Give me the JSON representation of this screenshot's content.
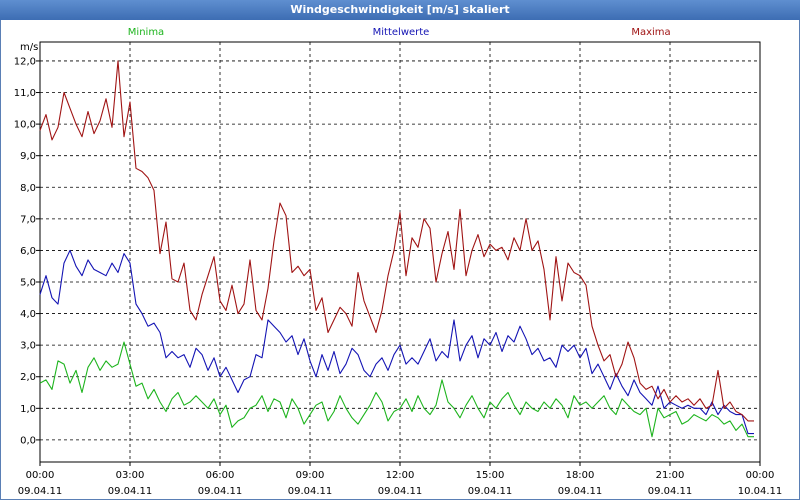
{
  "title": "Windgeschwindigkeit [m/s] skaliert",
  "colors": {
    "min": "#1eb41e",
    "mean": "#1414b4",
    "max": "#a01414",
    "title_bg": "#4a7cc0"
  },
  "chart_data": {
    "type": "line",
    "title": "Windgeschwindigkeit [m/s] skaliert",
    "ylabel": "m/s",
    "ylim": [
      -0.7,
      12.6
    ],
    "xlim_hours": [
      0,
      24
    ],
    "y_ticks": [
      "0,0",
      "1,0",
      "2,0",
      "3,0",
      "4,0",
      "5,0",
      "6,0",
      "7,0",
      "8,0",
      "9,0",
      "10,0",
      "11,0",
      "12,0"
    ],
    "x_ticks": [
      {
        "time": "00:00",
        "date": "09.04.11"
      },
      {
        "time": "03:00",
        "date": "09.04.11"
      },
      {
        "time": "06:00",
        "date": "09.04.11"
      },
      {
        "time": "09:00",
        "date": "09.04.11"
      },
      {
        "time": "12:00",
        "date": "09.04.11"
      },
      {
        "time": "15:00",
        "date": "09.04.11"
      },
      {
        "time": "18:00",
        "date": "09.04.11"
      },
      {
        "time": "21:00",
        "date": "09.04.11"
      },
      {
        "time": "00:00",
        "date": "10.04.11"
      }
    ],
    "legend": [
      "Minima",
      "Mittelwerte",
      "Maxima"
    ],
    "series": [
      {
        "name": "Minima",
        "color": "#1eb41e",
        "x": [
          0,
          0.2,
          0.4,
          0.6,
          0.8,
          1,
          1.2,
          1.4,
          1.6,
          1.8,
          2,
          2.2,
          2.4,
          2.6,
          2.8,
          3,
          3.2,
          3.4,
          3.6,
          3.8,
          4,
          4.2,
          4.4,
          4.6,
          4.8,
          5,
          5.2,
          5.4,
          5.6,
          5.8,
          6,
          6.2,
          6.4,
          6.6,
          6.8,
          7,
          7.2,
          7.4,
          7.6,
          7.8,
          8,
          8.2,
          8.4,
          8.6,
          8.8,
          9,
          9.2,
          9.4,
          9.6,
          9.8,
          10,
          10.2,
          10.4,
          10.6,
          10.8,
          11,
          11.2,
          11.4,
          11.6,
          11.8,
          12,
          12.2,
          12.4,
          12.6,
          12.8,
          13,
          13.2,
          13.4,
          13.6,
          13.8,
          14,
          14.2,
          14.4,
          14.6,
          14.8,
          15,
          15.2,
          15.4,
          15.6,
          15.8,
          16,
          16.2,
          16.4,
          16.6,
          16.8,
          17,
          17.2,
          17.4,
          17.6,
          17.8,
          18,
          18.2,
          18.4,
          18.6,
          18.8,
          19,
          19.2,
          19.4,
          19.6,
          19.8,
          20,
          20.2,
          20.4,
          20.6,
          20.8,
          21,
          21.2,
          21.4,
          21.6,
          21.8,
          22,
          22.2,
          22.4,
          22.6,
          22.8,
          23,
          23.2,
          23.4,
          23.6,
          23.8
        ],
        "values": [
          1.8,
          1.9,
          1.6,
          2.5,
          2.4,
          1.8,
          2.2,
          1.5,
          2.3,
          2.6,
          2.2,
          2.5,
          2.3,
          2.4,
          3.1,
          2.4,
          1.7,
          1.8,
          1.3,
          1.6,
          1.2,
          0.9,
          1.3,
          1.5,
          1.1,
          1.2,
          1.4,
          1.2,
          1.0,
          1.3,
          0.8,
          1.1,
          0.4,
          0.6,
          0.7,
          1.0,
          1.1,
          1.4,
          0.9,
          1.3,
          1.2,
          0.7,
          1.3,
          1.0,
          0.5,
          0.8,
          1.1,
          1.2,
          0.6,
          0.9,
          1.4,
          1.0,
          0.7,
          0.5,
          0.8,
          1.1,
          1.5,
          1.2,
          0.6,
          0.9,
          1.0,
          1.3,
          0.9,
          1.4,
          1.0,
          0.8,
          1.1,
          1.9,
          1.2,
          1.0,
          0.7,
          1.1,
          1.4,
          1.0,
          0.7,
          1.2,
          1.0,
          1.3,
          1.5,
          1.1,
          0.8,
          1.2,
          1.0,
          0.9,
          1.2,
          1.0,
          1.3,
          1.1,
          0.7,
          1.4,
          1.1,
          1.2,
          1.0,
          1.2,
          1.4,
          1.0,
          0.8,
          1.3,
          1.1,
          0.9,
          0.8,
          1.0,
          0.1,
          1.0,
          0.7,
          0.8,
          0.9,
          0.5,
          0.6,
          0.8,
          0.7,
          0.6,
          0.8,
          0.7,
          0.5,
          0.6,
          0.3,
          0.5,
          0.1,
          0.1
        ]
      },
      {
        "name": "Mittelwerte",
        "color": "#1414b4",
        "x": [
          0,
          0.2,
          0.4,
          0.6,
          0.8,
          1,
          1.2,
          1.4,
          1.6,
          1.8,
          2,
          2.2,
          2.4,
          2.6,
          2.8,
          3,
          3.2,
          3.4,
          3.6,
          3.8,
          4,
          4.2,
          4.4,
          4.6,
          4.8,
          5,
          5.2,
          5.4,
          5.6,
          5.8,
          6,
          6.2,
          6.4,
          6.6,
          6.8,
          7,
          7.2,
          7.4,
          7.6,
          7.8,
          8,
          8.2,
          8.4,
          8.6,
          8.8,
          9,
          9.2,
          9.4,
          9.6,
          9.8,
          10,
          10.2,
          10.4,
          10.6,
          10.8,
          11,
          11.2,
          11.4,
          11.6,
          11.8,
          12,
          12.2,
          12.4,
          12.6,
          12.8,
          13,
          13.2,
          13.4,
          13.6,
          13.8,
          14,
          14.2,
          14.4,
          14.6,
          14.8,
          15,
          15.2,
          15.4,
          15.6,
          15.8,
          16,
          16.2,
          16.4,
          16.6,
          16.8,
          17,
          17.2,
          17.4,
          17.6,
          17.8,
          18,
          18.2,
          18.4,
          18.6,
          18.8,
          19,
          19.2,
          19.4,
          19.6,
          19.8,
          20,
          20.2,
          20.4,
          20.6,
          20.8,
          21,
          21.2,
          21.4,
          21.6,
          21.8,
          22,
          22.2,
          22.4,
          22.6,
          22.8,
          23,
          23.2,
          23.4,
          23.6,
          23.8
        ],
        "values": [
          4.6,
          5.2,
          4.5,
          4.3,
          5.6,
          6.0,
          5.5,
          5.2,
          5.7,
          5.4,
          5.3,
          5.2,
          5.6,
          5.3,
          5.9,
          5.6,
          4.3,
          4.0,
          3.6,
          3.7,
          3.4,
          2.6,
          2.8,
          2.6,
          2.7,
          2.3,
          2.9,
          2.7,
          2.2,
          2.6,
          2.0,
          2.3,
          1.9,
          1.5,
          1.9,
          2.0,
          2.7,
          2.6,
          3.8,
          3.6,
          3.4,
          3.1,
          3.3,
          2.7,
          3.2,
          2.5,
          2.0,
          2.7,
          2.2,
          2.8,
          2.1,
          2.4,
          2.9,
          2.7,
          2.2,
          2.0,
          2.4,
          2.6,
          2.2,
          2.7,
          3.0,
          2.4,
          2.6,
          2.4,
          2.8,
          3.2,
          2.5,
          2.8,
          2.6,
          3.8,
          2.5,
          3.0,
          3.3,
          2.6,
          3.2,
          3.0,
          3.4,
          2.8,
          3.3,
          3.1,
          3.6,
          3.2,
          2.7,
          2.9,
          2.5,
          2.6,
          2.3,
          3.0,
          2.8,
          3.0,
          2.6,
          2.9,
          2.1,
          2.4,
          2.0,
          1.6,
          2.1,
          1.7,
          1.4,
          1.9,
          1.5,
          1.3,
          1.1,
          1.7,
          1.0,
          1.2,
          1.1,
          1.0,
          1.1,
          1.0,
          1.0,
          0.8,
          1.2,
          0.8,
          1.1,
          0.9,
          0.8,
          0.8,
          0.2,
          0.2
        ]
      },
      {
        "name": "Maxima",
        "color": "#a01414",
        "x": [
          0,
          0.2,
          0.4,
          0.6,
          0.8,
          1,
          1.2,
          1.4,
          1.6,
          1.8,
          2,
          2.2,
          2.4,
          2.6,
          2.8,
          3,
          3.2,
          3.4,
          3.6,
          3.8,
          4,
          4.2,
          4.4,
          4.6,
          4.8,
          5,
          5.2,
          5.4,
          5.6,
          5.8,
          6,
          6.2,
          6.4,
          6.6,
          6.8,
          7,
          7.2,
          7.4,
          7.6,
          7.8,
          8,
          8.2,
          8.4,
          8.6,
          8.8,
          9,
          9.2,
          9.4,
          9.6,
          9.8,
          10,
          10.2,
          10.4,
          10.6,
          10.8,
          11,
          11.2,
          11.4,
          11.6,
          11.8,
          12,
          12.2,
          12.4,
          12.6,
          12.8,
          13,
          13.2,
          13.4,
          13.6,
          13.8,
          14,
          14.2,
          14.4,
          14.6,
          14.8,
          15,
          15.2,
          15.4,
          15.6,
          15.8,
          16,
          16.2,
          16.4,
          16.6,
          16.8,
          17,
          17.2,
          17.4,
          17.6,
          17.8,
          18,
          18.2,
          18.4,
          18.6,
          18.8,
          19,
          19.2,
          19.4,
          19.6,
          19.8,
          20,
          20.2,
          20.4,
          20.6,
          20.8,
          21,
          21.2,
          21.4,
          21.6,
          21.8,
          22,
          22.2,
          22.4,
          22.6,
          22.8,
          23,
          23.2,
          23.4,
          23.6,
          23.8
        ],
        "values": [
          9.8,
          10.3,
          9.5,
          9.9,
          11.0,
          10.5,
          10.0,
          9.6,
          10.4,
          9.7,
          10.1,
          10.8,
          9.9,
          12.0,
          9.6,
          10.7,
          8.6,
          8.5,
          8.3,
          7.9,
          5.9,
          6.9,
          5.1,
          5.0,
          5.6,
          4.1,
          3.8,
          4.6,
          5.2,
          5.8,
          4.4,
          4.1,
          4.9,
          4.0,
          4.3,
          5.7,
          4.1,
          3.8,
          4.8,
          6.3,
          7.5,
          7.1,
          5.3,
          5.5,
          5.2,
          5.4,
          4.1,
          4.5,
          3.4,
          3.8,
          4.2,
          4.0,
          3.6,
          5.3,
          4.4,
          3.9,
          3.4,
          4.1,
          5.2,
          6.0,
          7.2,
          5.2,
          6.4,
          6.1,
          7.0,
          6.7,
          5.0,
          5.9,
          6.6,
          5.4,
          7.3,
          5.2,
          6.0,
          6.5,
          5.8,
          6.2,
          6.0,
          6.1,
          5.7,
          6.4,
          6.0,
          7.0,
          6.0,
          6.3,
          5.4,
          3.8,
          5.8,
          4.4,
          5.6,
          5.3,
          5.2,
          4.9,
          3.6,
          3.0,
          2.5,
          2.7,
          2.0,
          2.4,
          3.1,
          2.6,
          1.8,
          1.6,
          1.7,
          1.3,
          1.6,
          1.2,
          1.4,
          1.2,
          1.3,
          1.1,
          1.3,
          1.0,
          1.1,
          2.2,
          1.0,
          1.2,
          0.9,
          0.8,
          0.6,
          0.6
        ]
      }
    ]
  }
}
